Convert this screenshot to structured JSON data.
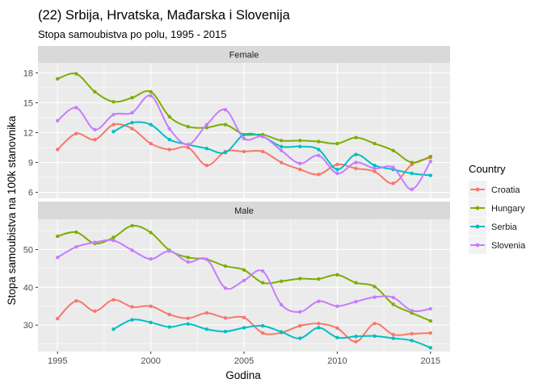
{
  "chart_data": {
    "type": "line",
    "title": "(22) Srbija, Hrvatska, Mađarska i Slovenija",
    "subtitle": "Stopa samoubistva po polu, 1995 - 2015",
    "xlabel": "Godina",
    "ylabel": "Stopa samoubistva na 100k stanovnika",
    "x_ticks": [
      1995,
      2000,
      2005,
      2010,
      2015
    ],
    "legend": {
      "title": "Country",
      "position": "right"
    },
    "colors": {
      "Croatia": "#F8766D",
      "Hungary": "#7CAE00",
      "Serbia": "#00BFC4",
      "Slovenia": "#C77CFF",
      "panel_bg": "#EBEBEB",
      "strip_bg": "#D9D9D9"
    },
    "panels": [
      {
        "label": "Female",
        "ylim": [
          5.4,
          19.0
        ],
        "y_ticks": [
          6,
          9,
          12,
          15,
          18
        ],
        "series": [
          {
            "name": "Croatia",
            "x": [
              1995,
              1996,
              1997,
              1998,
              1999,
              2000,
              2001,
              2002,
              2003,
              2004,
              2005,
              2006,
              2007,
              2008,
              2009,
              2010,
              2011,
              2012,
              2013,
              2014,
              2015
            ],
            "values": [
              10.3,
              11.9,
              11.3,
              12.8,
              12.4,
              10.9,
              10.3,
              10.5,
              8.7,
              10.1,
              10.1,
              10.1,
              9.0,
              8.3,
              7.8,
              8.8,
              8.4,
              8.1,
              6.9,
              8.8,
              9.5
            ]
          },
          {
            "name": "Hungary",
            "x": [
              1995,
              1996,
              1997,
              1998,
              1999,
              2000,
              2001,
              2002,
              2003,
              2004,
              2005,
              2006,
              2007,
              2008,
              2009,
              2010,
              2011,
              2012,
              2013,
              2014,
              2015
            ],
            "values": [
              17.4,
              17.9,
              16.1,
              15.1,
              15.5,
              16.1,
              13.6,
              12.6,
              12.5,
              12.8,
              11.8,
              11.8,
              11.2,
              11.2,
              11.1,
              10.9,
              11.5,
              10.9,
              10.2,
              9.0,
              9.6
            ]
          },
          {
            "name": "Serbia",
            "x": [
              1998,
              1999,
              2000,
              2001,
              2002,
              2003,
              2004,
              2005,
              2006,
              2007,
              2008,
              2009,
              2010,
              2011,
              2012,
              2013,
              2014,
              2015
            ],
            "values": [
              12.1,
              13.0,
              12.8,
              11.3,
              10.8,
              10.4,
              10.0,
              11.8,
              11.6,
              10.6,
              10.6,
              10.3,
              8.3,
              9.8,
              8.7,
              8.3,
              7.9,
              7.7
            ]
          },
          {
            "name": "Slovenia",
            "x": [
              1995,
              1996,
              1997,
              1998,
              1999,
              2000,
              2001,
              2002,
              2003,
              2004,
              2005,
              2006,
              2007,
              2008,
              2009,
              2010,
              2011,
              2012,
              2013,
              2014,
              2015
            ],
            "values": [
              13.2,
              14.5,
              12.3,
              13.8,
              14.0,
              15.7,
              12.4,
              10.8,
              12.8,
              14.3,
              11.4,
              11.6,
              10.2,
              8.9,
              9.7,
              7.9,
              9.0,
              8.4,
              8.5,
              6.3,
              9.1
            ]
          }
        ]
      },
      {
        "label": "Male",
        "ylim": [
          23.0,
          58.0
        ],
        "y_ticks": [
          30,
          40,
          50
        ],
        "series": [
          {
            "name": "Croatia",
            "x": [
              1995,
              1996,
              1997,
              1998,
              1999,
              2000,
              2001,
              2002,
              2003,
              2004,
              2005,
              2006,
              2007,
              2008,
              2009,
              2010,
              2011,
              2012,
              2013,
              2014,
              2015
            ],
            "values": [
              31.7,
              36.4,
              33.7,
              36.7,
              34.8,
              35.0,
              32.8,
              31.8,
              33.2,
              31.9,
              32.0,
              27.9,
              28.0,
              29.8,
              30.4,
              29.2,
              25.6,
              30.4,
              27.5,
              27.7,
              27.9
            ]
          },
          {
            "name": "Hungary",
            "x": [
              1995,
              1996,
              1997,
              1998,
              1999,
              2000,
              2001,
              2002,
              2003,
              2004,
              2005,
              2006,
              2007,
              2008,
              2009,
              2010,
              2011,
              2012,
              2013,
              2014,
              2015
            ],
            "values": [
              53.5,
              54.6,
              51.6,
              53.2,
              56.3,
              54.5,
              49.8,
              47.9,
              47.4,
              45.6,
              44.6,
              41.2,
              41.6,
              42.3,
              42.2,
              43.3,
              41.2,
              40.2,
              35.5,
              33.2,
              31.1
            ]
          },
          {
            "name": "Serbia",
            "x": [
              1998,
              1999,
              2000,
              2001,
              2002,
              2003,
              2004,
              2005,
              2006,
              2007,
              2008,
              2009,
              2010,
              2011,
              2012,
              2013,
              2014,
              2015
            ],
            "values": [
              28.9,
              31.4,
              30.7,
              29.5,
              30.3,
              28.9,
              28.3,
              29.3,
              29.8,
              28.2,
              26.5,
              29.3,
              26.7,
              27.0,
              27.1,
              26.5,
              25.9,
              24.0
            ]
          },
          {
            "name": "Slovenia",
            "x": [
              1995,
              1996,
              1997,
              1998,
              1999,
              2000,
              2001,
              2002,
              2003,
              2004,
              2005,
              2006,
              2007,
              2008,
              2009,
              2010,
              2011,
              2012,
              2013,
              2014,
              2015
            ],
            "values": [
              47.9,
              50.7,
              51.9,
              52.4,
              49.8,
              47.5,
              49.6,
              46.7,
              47.4,
              39.8,
              41.8,
              44.3,
              35.4,
              33.5,
              36.3,
              35.0,
              36.2,
              37.4,
              37.3,
              33.8,
              34.3
            ]
          }
        ]
      }
    ]
  }
}
